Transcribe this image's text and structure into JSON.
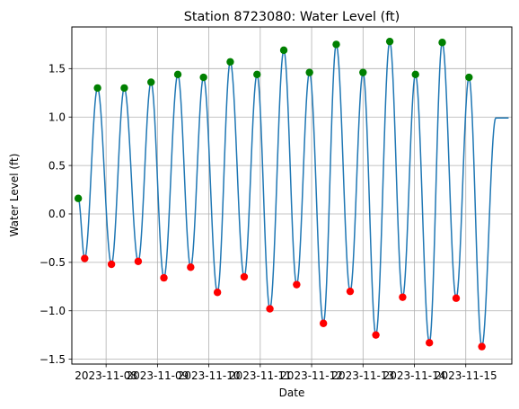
{
  "chart_data": {
    "type": "line",
    "title": "Station 8723080: Water Level (ft)",
    "xlabel": "Date",
    "ylabel": "Water Level (ft)",
    "xlim": [
      "2023-11-07T08:00",
      "2023-11-15T21:30"
    ],
    "ylim": [
      -1.55,
      1.93
    ],
    "x_ticks": [
      "2023-11-08",
      "2023-11-09",
      "2023-11-10",
      "2023-11-11",
      "2023-11-12",
      "2023-11-13",
      "2023-11-14",
      "2023-11-15"
    ],
    "y_ticks": [
      "−1.5",
      "−1.0",
      "−0.5",
      "0.0",
      "0.5",
      "1.0",
      "1.5"
    ],
    "y_tick_values": [
      -1.5,
      -1.0,
      -0.5,
      0.0,
      0.5,
      1.0,
      1.5
    ],
    "grid": true,
    "line_color": "#1f77b4",
    "high_color": "#008000",
    "low_color": "#ff0000",
    "series": [
      {
        "type": "line",
        "x": [
          "2023-11-07T11:00",
          "2023-11-07T14:00",
          "2023-11-07T20:00",
          "2023-11-08T02:30",
          "2023-11-08T08:30",
          "2023-11-08T15:00",
          "2023-11-08T21:00",
          "2023-11-09T03:00",
          "2023-11-09T09:30",
          "2023-11-09T15:30",
          "2023-11-09T21:30",
          "2023-11-10T04:00",
          "2023-11-10T10:00",
          "2023-11-10T16:30",
          "2023-11-10T22:30",
          "2023-11-11T04:30",
          "2023-11-11T11:00",
          "2023-11-11T17:00",
          "2023-11-11T23:00",
          "2023-11-12T05:30",
          "2023-11-12T11:30",
          "2023-11-12T18:00",
          "2023-11-13T00:00",
          "2023-11-13T06:00",
          "2023-11-13T12:30",
          "2023-11-13T18:30",
          "2023-11-14T00:30",
          "2023-11-14T07:00",
          "2023-11-14T13:00",
          "2023-11-14T19:30",
          "2023-11-15T01:30",
          "2023-11-15T07:30",
          "2023-11-15T14:00",
          "2023-11-15T20:00"
        ],
        "values": [
          0.16,
          -0.46,
          1.3,
          -0.52,
          1.3,
          -0.49,
          1.36,
          -0.66,
          1.44,
          -0.55,
          1.41,
          -0.81,
          1.57,
          -0.65,
          1.44,
          -0.98,
          1.69,
          -0.73,
          1.46,
          -1.13,
          1.75,
          -0.8,
          1.46,
          -1.25,
          1.78,
          -0.86,
          1.44,
          -1.33,
          1.77,
          -0.87,
          1.41,
          -1.37,
          0.99,
          0.99
        ]
      },
      {
        "type": "scatter",
        "x": [
          "2023-11-07T11:00",
          "2023-11-07T20:00",
          "2023-11-08T08:30",
          "2023-11-08T21:00",
          "2023-11-09T09:30",
          "2023-11-09T21:30",
          "2023-11-10T10:00",
          "2023-11-10T22:30",
          "2023-11-11T11:00",
          "2023-11-11T23:00",
          "2023-11-12T11:30",
          "2023-11-13T00:00",
          "2023-11-13T12:30",
          "2023-11-14T00:30",
          "2023-11-14T13:00",
          "2023-11-15T01:30"
        ],
        "values": [
          0.16,
          1.3,
          1.3,
          1.36,
          1.44,
          1.41,
          1.57,
          1.44,
          1.69,
          1.46,
          1.75,
          1.46,
          1.78,
          1.44,
          1.77,
          1.41
        ]
      },
      {
        "type": "scatter",
        "x": [
          "2023-11-07T14:00",
          "2023-11-08T02:30",
          "2023-11-08T15:00",
          "2023-11-09T03:00",
          "2023-11-09T15:30",
          "2023-11-10T04:00",
          "2023-11-10T16:30",
          "2023-11-11T04:30",
          "2023-11-11T17:00",
          "2023-11-12T05:30",
          "2023-11-12T18:00",
          "2023-11-13T06:00",
          "2023-11-13T18:30",
          "2023-11-14T07:00",
          "2023-11-14T19:30",
          "2023-11-15T07:30"
        ],
        "values": [
          -0.46,
          -0.52,
          -0.49,
          -0.66,
          -0.55,
          -0.81,
          -0.65,
          -0.98,
          -0.73,
          -1.13,
          -0.8,
          -1.25,
          -0.86,
          -1.33,
          -0.87,
          -1.37
        ]
      }
    ]
  }
}
